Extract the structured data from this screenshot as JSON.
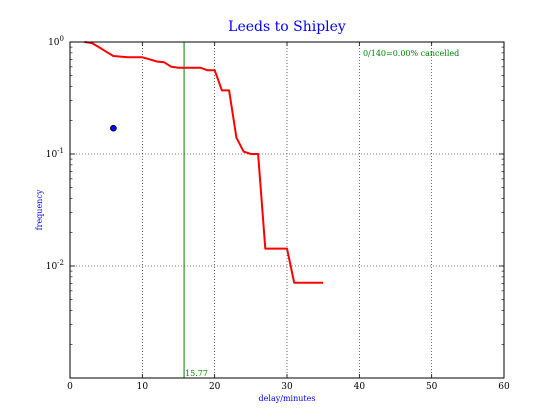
{
  "chart_data": {
    "type": "line",
    "title": "Leeds to Shipley",
    "xlabel": "delay/minutes",
    "ylabel": "frequency",
    "xlim": [
      0,
      60
    ],
    "ylim": [
      0.001,
      1
    ],
    "yscale": "log",
    "grid": true,
    "x_ticks": [
      0,
      10,
      20,
      30,
      40,
      50,
      60
    ],
    "y_ticks": [
      {
        "value": 1,
        "base": "10",
        "exp": "0"
      },
      {
        "value": 0.1,
        "base": "10",
        "exp": "-1"
      },
      {
        "value": 0.01,
        "base": "10",
        "exp": "-2"
      }
    ],
    "series": [
      {
        "color": "#ff0000",
        "x": [
          2,
          3,
          4,
          5,
          6,
          7,
          8,
          9,
          10,
          11,
          12,
          13,
          14,
          15,
          16,
          17,
          18,
          19,
          20,
          21,
          22,
          23,
          24,
          25,
          26,
          27,
          28,
          29,
          30,
          31,
          32,
          33,
          34,
          35
        ],
        "y": [
          1.0,
          0.98,
          0.9,
          0.82,
          0.75,
          0.74,
          0.73,
          0.73,
          0.73,
          0.7,
          0.67,
          0.66,
          0.6,
          0.59,
          0.59,
          0.59,
          0.59,
          0.56,
          0.56,
          0.37,
          0.37,
          0.14,
          0.105,
          0.1,
          0.1,
          0.0143,
          0.0143,
          0.0143,
          0.0143,
          0.0071,
          0.0071,
          0.0071,
          0.0071,
          0.0071
        ]
      }
    ],
    "point": {
      "x": 6,
      "y": 0.17,
      "color": "#0000ff"
    },
    "vline": {
      "x": 15.77,
      "label": "15.77",
      "color": "#008000"
    },
    "annotation": {
      "text": "0/140=0.00% cancelled",
      "color": "#008000",
      "x": 40.5,
      "y": 0.8
    }
  }
}
